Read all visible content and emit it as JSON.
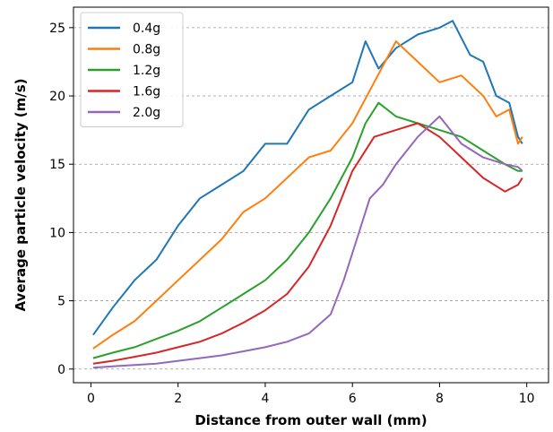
{
  "chart_data": {
    "type": "line",
    "title": "",
    "xlabel": "Distance from outer wall (mm)",
    "ylabel": "Average particle velocity (m/s)",
    "xlim": [
      -0.4,
      10.5
    ],
    "ylim": [
      -1,
      26.5
    ],
    "xticks": [
      0,
      2,
      4,
      6,
      8,
      10
    ],
    "yticks": [
      0,
      5,
      10,
      15,
      20,
      25
    ],
    "grid": "horizontal dashed",
    "legend_position": "top-left",
    "series": [
      {
        "name": "0.4g",
        "color": "#1f77b4",
        "x": [
          0.05,
          0.5,
          1,
          1.5,
          2,
          2.5,
          3,
          3.5,
          4,
          4.5,
          5,
          5.5,
          6,
          6.3,
          6.6,
          7,
          7.5,
          8,
          8.3,
          8.7,
          9,
          9.3,
          9.6,
          9.8,
          9.9
        ],
        "y": [
          2.5,
          4.5,
          6.5,
          8.0,
          10.5,
          12.5,
          13.5,
          14.5,
          16.5,
          16.5,
          19.0,
          20.0,
          21.0,
          24.0,
          22.0,
          23.5,
          24.5,
          25.0,
          25.5,
          23.0,
          22.5,
          20.0,
          19.5,
          17.0,
          16.5
        ]
      },
      {
        "name": "0.8g",
        "color": "#ff7f0e",
        "x": [
          0.05,
          0.5,
          1,
          1.5,
          2,
          2.5,
          3,
          3.5,
          4,
          4.5,
          5,
          5.5,
          6,
          6.5,
          7,
          7.5,
          8,
          8.5,
          9,
          9.3,
          9.6,
          9.8,
          9.9
        ],
        "y": [
          1.5,
          2.5,
          3.5,
          5.0,
          6.5,
          8.0,
          9.5,
          11.5,
          12.5,
          14.0,
          15.5,
          16.0,
          18.0,
          21.0,
          24.0,
          22.5,
          21.0,
          21.5,
          20.0,
          18.5,
          19.0,
          16.5,
          17.0
        ]
      },
      {
        "name": "1.2g",
        "color": "#2ca02c",
        "x": [
          0.05,
          0.5,
          1,
          1.5,
          2,
          2.5,
          3,
          3.5,
          4,
          4.5,
          5,
          5.5,
          6,
          6.3,
          6.6,
          7,
          7.5,
          8,
          8.5,
          9,
          9.5,
          9.8,
          9.9
        ],
        "y": [
          0.8,
          1.2,
          1.6,
          2.2,
          2.8,
          3.5,
          4.5,
          5.5,
          6.5,
          8.0,
          10.0,
          12.5,
          15.5,
          18.0,
          19.5,
          18.5,
          18.0,
          17.5,
          17.0,
          16.0,
          15.0,
          14.5,
          14.5
        ]
      },
      {
        "name": "1.6g",
        "color": "#d62728",
        "x": [
          0.05,
          0.5,
          1,
          1.5,
          2,
          2.5,
          3,
          3.5,
          4,
          4.5,
          5,
          5.5,
          6,
          6.5,
          7,
          7.5,
          8,
          8.5,
          9,
          9.5,
          9.8,
          9.9
        ],
        "y": [
          0.4,
          0.6,
          0.9,
          1.2,
          1.6,
          2.0,
          2.6,
          3.4,
          4.3,
          5.5,
          7.5,
          10.5,
          14.5,
          17.0,
          17.5,
          18.0,
          17.0,
          15.5,
          14.0,
          13.0,
          13.5,
          14.0
        ]
      },
      {
        "name": "2.0g",
        "color": "#9467bd",
        "x": [
          0.05,
          0.5,
          1,
          1.5,
          2,
          2.5,
          3,
          3.5,
          4,
          4.5,
          5,
          5.5,
          5.8,
          6.1,
          6.4,
          6.7,
          7,
          7.5,
          8,
          8.5,
          9,
          9.5,
          9.8,
          9.9
        ],
        "y": [
          0.1,
          0.2,
          0.3,
          0.4,
          0.6,
          0.8,
          1.0,
          1.3,
          1.6,
          2.0,
          2.6,
          4.0,
          6.5,
          9.5,
          12.5,
          13.5,
          15.0,
          17.0,
          18.5,
          16.5,
          15.5,
          15.0,
          14.8,
          14.5
        ]
      }
    ]
  }
}
